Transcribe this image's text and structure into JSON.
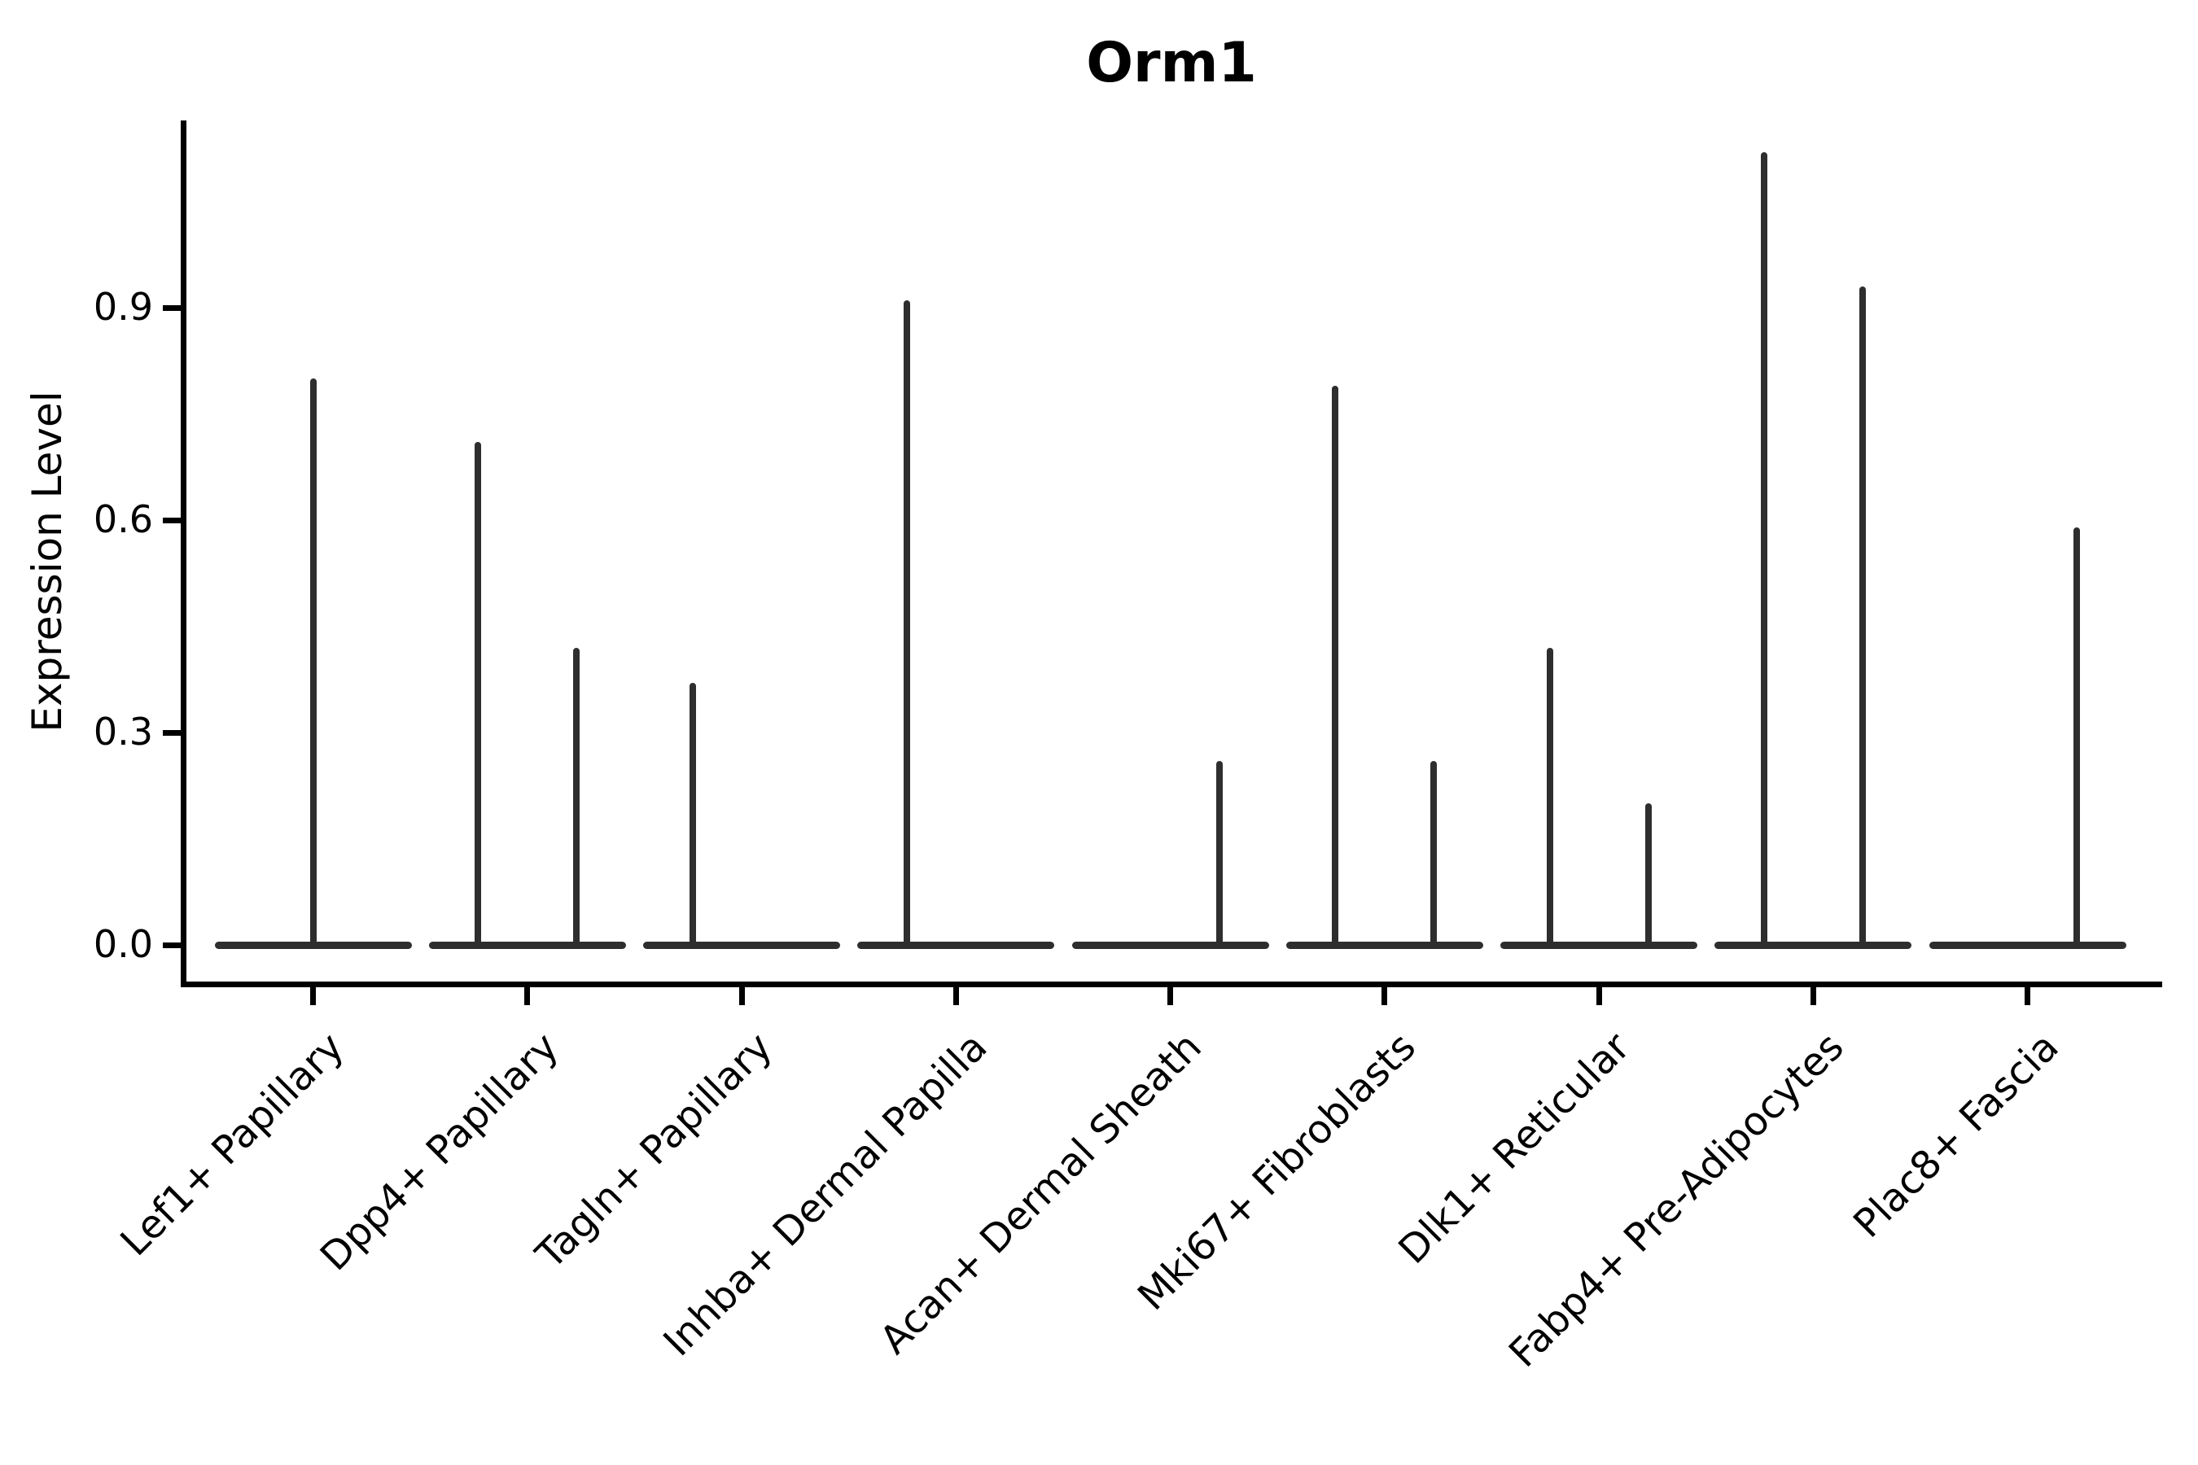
{
  "chart_data": {
    "type": "violin",
    "title": "Orm1",
    "ylabel": "Expression Level",
    "xlabel": "",
    "ylim": [
      0.0,
      1.16
    ],
    "grid": false,
    "legend": null,
    "yticks": [
      {
        "label": "0.0",
        "value": 0.0
      },
      {
        "label": "0.3",
        "value": 0.3
      },
      {
        "label": "0.6",
        "value": 0.6
      },
      {
        "label": "0.9",
        "value": 0.9
      }
    ],
    "note": "Violin plot of mostly-zero expression; each category shows a flat density base at 0 with thin spikes reaching the maximum expressed values",
    "categories": [
      {
        "label": "Lef1+ Papillary",
        "spikes": [
          {
            "pos": "center",
            "value": 0.8
          }
        ]
      },
      {
        "label": "Dpp4+ Papillary",
        "spikes": [
          {
            "pos": "left",
            "value": 0.71
          },
          {
            "pos": "right",
            "value": 0.42
          }
        ]
      },
      {
        "label": "Tagln+ Papillary",
        "spikes": [
          {
            "pos": "left",
            "value": 0.37
          }
        ]
      },
      {
        "label": "Inhba+ Dermal Papilla",
        "spikes": [
          {
            "pos": "left",
            "value": 0.91
          }
        ]
      },
      {
        "label": "Acan+ Dermal Sheath",
        "spikes": [
          {
            "pos": "right",
            "value": 0.26
          }
        ]
      },
      {
        "label": "Mki67+ Fibroblasts",
        "spikes": [
          {
            "pos": "left",
            "value": 0.79
          },
          {
            "pos": "right",
            "value": 0.26
          }
        ]
      },
      {
        "label": "Dlk1+ Reticular",
        "spikes": [
          {
            "pos": "left",
            "value": 0.42
          },
          {
            "pos": "right",
            "value": 0.2
          }
        ]
      },
      {
        "label": "Fabp4+ Pre-Adipocytes",
        "spikes": [
          {
            "pos": "left",
            "value": 1.12
          },
          {
            "pos": "right",
            "value": 0.93
          }
        ]
      },
      {
        "label": "Plac8+ Fascia",
        "spikes": [
          {
            "pos": "right",
            "value": 0.59
          }
        ]
      }
    ],
    "colors": {
      "violin": "#2e2e2e",
      "axis": "#000000",
      "background": "#ffffff"
    }
  }
}
